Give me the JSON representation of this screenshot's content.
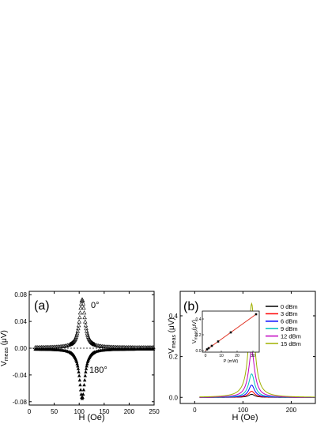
{
  "chart_data": [
    {
      "type": "scatter",
      "panel_label": "(a)",
      "xlabel": "H (Oe)",
      "ylabel_main": "V",
      "ylabel_sub": "meas",
      "ylabel_unit": " (μV)",
      "xlim": [
        0,
        250
      ],
      "ylim": [
        -0.085,
        0.085
      ],
      "xticks": [
        0,
        50,
        100,
        150,
        200,
        250
      ],
      "ytick_labels": [
        "0.08",
        "0.04",
        "0.00",
        "-0.04",
        "-0.08"
      ],
      "yticks": [
        0.08,
        0.04,
        0.0,
        -0.04,
        -0.08
      ],
      "annotations": [
        "0°",
        "180°"
      ],
      "lineshape": {
        "H0": 106,
        "width": 6.5
      },
      "series": [
        {
          "marker": "open-triangle",
          "amplitude": 0.072,
          "offset": 0.001
        },
        {
          "marker": "filled-triangle",
          "amplitude": -0.074,
          "offset": -0.001
        }
      ]
    },
    {
      "type": "line",
      "panel_label": "(b)",
      "xlabel": "H (Oe)",
      "ylabel_main": "V",
      "ylabel_sub": "meas",
      "ylabel_unit": " (μV)",
      "xlim": [
        -30,
        250
      ],
      "ylim": [
        -0.03,
        0.52
      ],
      "xticks": [
        0,
        100,
        200
      ],
      "ytick_labels": [
        "0.4",
        "0.2",
        "0.0"
      ],
      "yticks": [
        0.4,
        0.2,
        0.0
      ],
      "legend_position": "right",
      "lineshape": {
        "H0": 118,
        "width": 7.5,
        "x_start": 10
      },
      "series": [
        {
          "name": "0 dBm",
          "color": "#000000",
          "peak": 0.015
        },
        {
          "name": "3 dBm",
          "color": "#ff0000",
          "peak": 0.03
        },
        {
          "name": "6 dBm",
          "color": "#0000ff",
          "peak": 0.06
        },
        {
          "name": "9 dBm",
          "color": "#00c0c0",
          "peak": 0.115
        },
        {
          "name": "12 dBm",
          "color": "#c000c0",
          "peak": 0.23
        },
        {
          "name": "15 dBm",
          "color": "#a0b000",
          "peak": 0.46
        }
      ],
      "inset": {
        "type": "line",
        "xlabel": "P (mW)",
        "ylabel_main": "V",
        "ylabel_sub": "meas",
        "ylabel_unit": "(μV)",
        "xlim": [
          -2,
          34
        ],
        "ylim": [
          -0.02,
          0.5
        ],
        "xticks": [
          0,
          10,
          20,
          30
        ],
        "yticks": [
          0.0,
          0.2,
          0.4
        ],
        "ytick_labels": [
          "0.0",
          "0.2",
          "0.4"
        ],
        "color": "#e03020",
        "x": [
          1,
          2,
          4,
          8,
          16,
          32
        ],
        "y": [
          0.015,
          0.03,
          0.06,
          0.115,
          0.23,
          0.46
        ]
      }
    }
  ]
}
